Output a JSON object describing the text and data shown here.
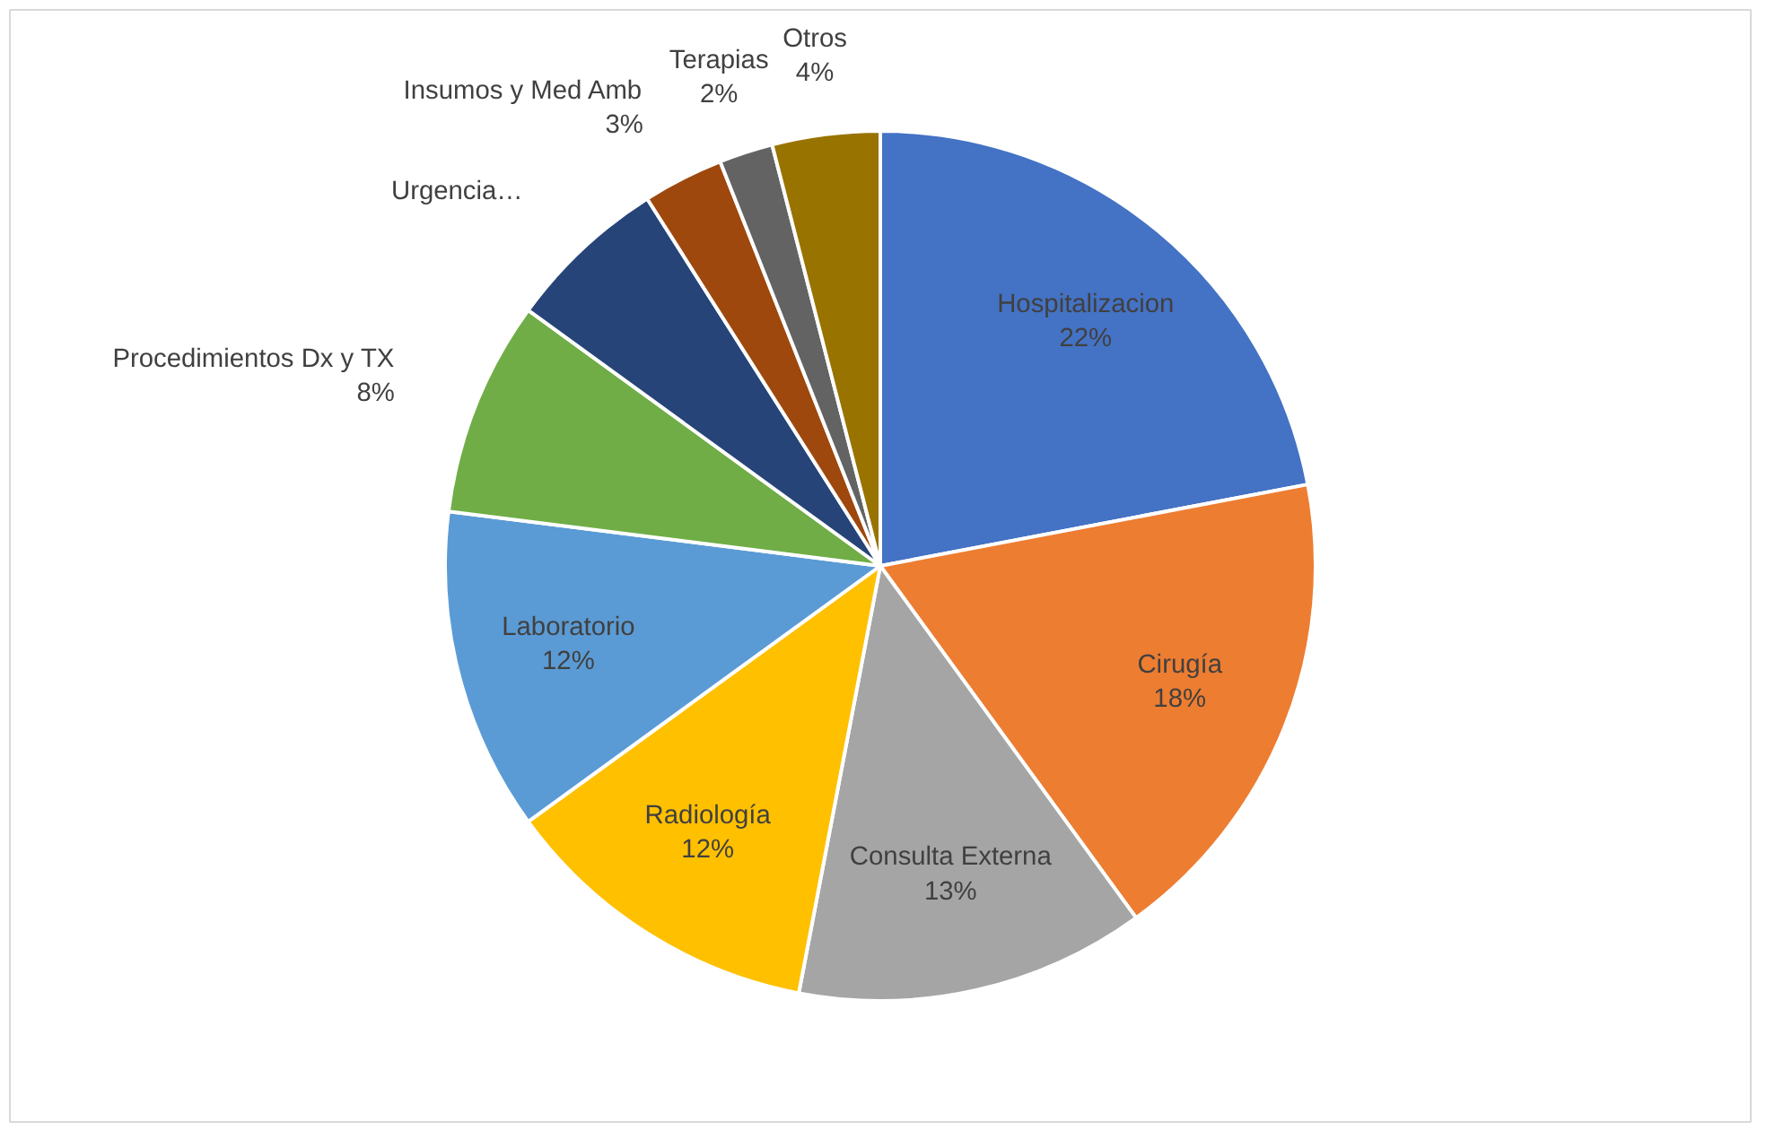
{
  "chart_data": {
    "type": "pie",
    "categories": [
      "Hospitalizacion",
      "Cirugía",
      "Consulta Externa",
      "Radiología",
      "Laboratorio",
      "Procedimientos Dx y TX",
      "Urgencia…",
      "Insumos y Med Amb",
      "Terapias",
      "Otros"
    ],
    "values": [
      22,
      18,
      13,
      12,
      12,
      8,
      6,
      3,
      2,
      4
    ],
    "colors": [
      "#4472c4",
      "#ed7d31",
      "#a5a5a5",
      "#ffc000",
      "#5b9bd5",
      "#70ad47",
      "#264478",
      "#9e480e",
      "#636363",
      "#997300"
    ],
    "value_labels": [
      "22%",
      "18%",
      "13%",
      "12%",
      "12%",
      "8%",
      null,
      "3%",
      "2%",
      "4%"
    ]
  }
}
